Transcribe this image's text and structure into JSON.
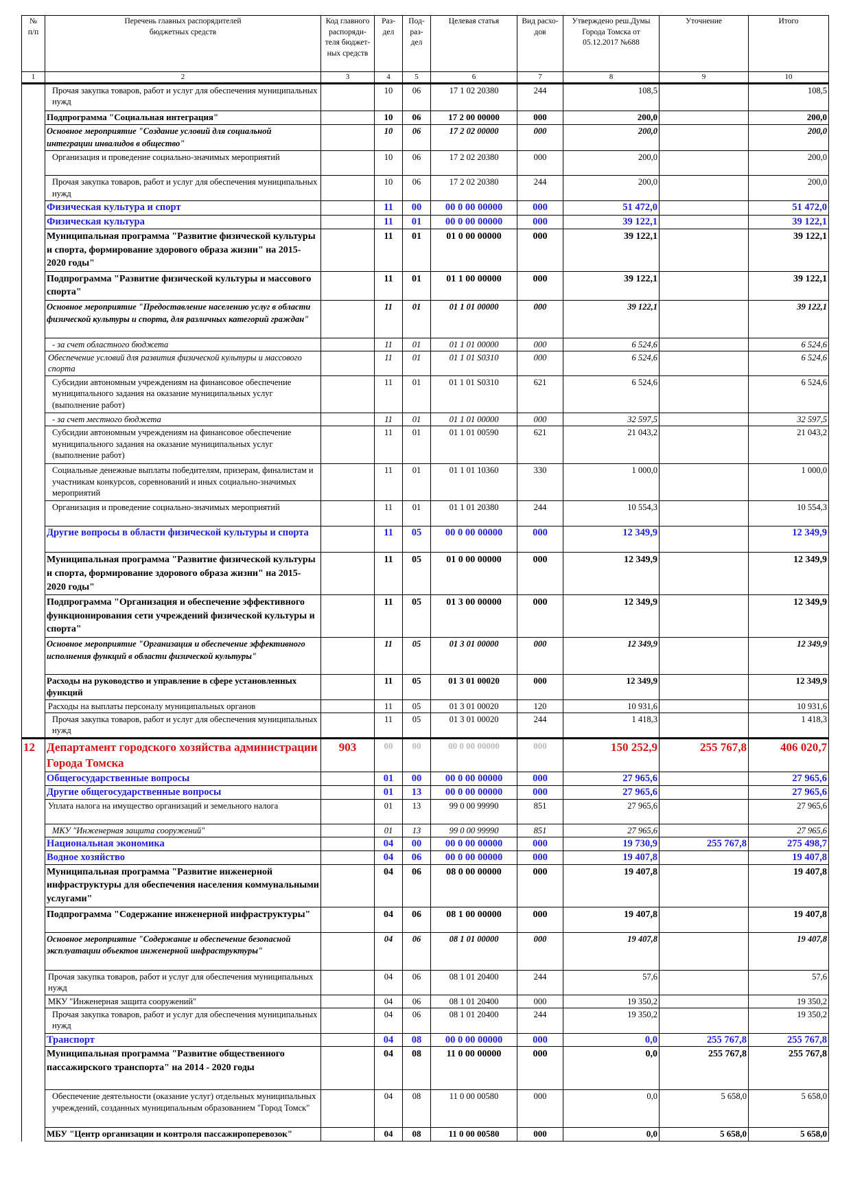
{
  "header": {
    "c1": "№\nп/п",
    "c2": "Перечень главных распорядителей\nбюджетных средств",
    "c3": "Код главного\nраспоряди-\nтеля бюджет-\nных средств",
    "c4": "Раз-\nдел",
    "c5": "Под-\nраз-\nдел",
    "c6": "Целевая статья",
    "c7": "Вид расхо-\nдов",
    "c8": "Утверждено реш.Думы\nГорода Томска от\n05.12.2017 №688",
    "c9": "Уточнение",
    "c10": "Итого"
  },
  "column_numbers": [
    "1",
    "2",
    "3",
    "4",
    "5",
    "6",
    "7",
    "8",
    "9",
    "10"
  ],
  "dept_number": "12",
  "dept_code": "903",
  "rows": [
    {
      "s": "ind",
      "h": 40,
      "name": "Прочая закупка товаров, работ и услуг для обеспечения муниципальных нужд",
      "razdel": "10",
      "podrazdel": "06",
      "statya": "17 1 02 20380",
      "vid": "244",
      "approved": "108,5",
      "change": "",
      "total": "108,5"
    },
    {
      "s": "progs",
      "h": 20,
      "name": "Подпрограмма \"Социальная интеграция\"",
      "razdel": "10",
      "podrazdel": "06",
      "statya": "17 2 00 00000",
      "vid": "000",
      "approved": "200,0",
      "change": "",
      "total": "200,0"
    },
    {
      "s": "main",
      "h": 35,
      "name": "Основное мероприятие \"Создание условий для социальной интеграции инвалидов в общество\"",
      "razdel": "10",
      "podrazdel": "06",
      "statya": "17 2 02 00000",
      "vid": "000",
      "approved": "200,0",
      "change": "",
      "total": "200,0"
    },
    {
      "s": "ind",
      "h": 36,
      "name": "Организация и проведение социально-значимых мероприятий",
      "razdel": "10",
      "podrazdel": "06",
      "statya": "17 2 02 20380",
      "vid": "000",
      "approved": "200,0",
      "change": "",
      "total": "200,0"
    },
    {
      "s": "ind",
      "h": 37,
      "name": "Прочая закупка товаров, работ и услуг для обеспечения муниципальных нужд",
      "razdel": "10",
      "podrazdel": "06",
      "statya": "17 2 02 20380",
      "vid": "244",
      "approved": "200,0",
      "change": "",
      "total": "200,0"
    },
    {
      "s": "sec",
      "h": 21,
      "name": "Физическая культура и спорт",
      "razdel": "11",
      "podrazdel": "00",
      "statya": "00 0 00 00000",
      "vid": "000",
      "approved": "51 472,0",
      "change": "",
      "total": "51 472,0"
    },
    {
      "s": "sec",
      "h": 19,
      "name": "Физическая культура",
      "razdel": "11",
      "podrazdel": "01",
      "statya": "00 0 00 00000",
      "vid": "000",
      "approved": "39 122,1",
      "change": "",
      "total": "39 122,1"
    },
    {
      "s": "prog",
      "h": 57,
      "name": "Муниципальная программа \"Развитие физической культуры и спорта, формирование здорового образа жизни\" на 2015-2020 годы\"",
      "razdel": "11",
      "podrazdel": "01",
      "statya": "01 0 00 00000",
      "vid": "000",
      "approved": "39 122,1",
      "change": "",
      "total": "39 122,1"
    },
    {
      "s": "prog",
      "h": 37,
      "name": "Подпрограмма \"Развитие физической культуры и массового спорта\"",
      "razdel": "11",
      "podrazdel": "01",
      "statya": "01 1 00 00000",
      "vid": "000",
      "approved": "39 122,1",
      "change": "",
      "total": "39 122,1"
    },
    {
      "s": "main",
      "h": 55,
      "name": "Основное мероприятие \"Предоставление населению услуг в области физической культуры и спорта, для различных категорий граждан\"",
      "razdel": "11",
      "podrazdel": "01",
      "statya": "01 1 01 00000",
      "vid": "000",
      "approved": "39 122,1",
      "change": "",
      "total": "39 122,1"
    },
    {
      "s": "ital ind",
      "h": 18,
      "name": "- за счет областного бюджета",
      "razdel": "11",
      "podrazdel": "01",
      "statya": "01 1 01 00000",
      "vid": "000",
      "approved": "6 524,6",
      "change": "",
      "total": "6 524,6"
    },
    {
      "s": "ital norm",
      "h": 36,
      "name": "Обеспечение условий для развития физической культуры и массового спорта",
      "razdel": "11",
      "podrazdel": "01",
      "statya": "01 1 01 S0310",
      "vid": "000",
      "approved": "6 524,6",
      "change": "",
      "total": "6 524,6"
    },
    {
      "s": "ind",
      "h": 54,
      "name": "Субсидии автономным учреждениям на финансовое обеспечение муниципального задания на оказание муниципальных услуг (выполнение работ)",
      "razdel": "11",
      "podrazdel": "01",
      "statya": "01 1 01 S0310",
      "vid": "621",
      "approved": "6 524,6",
      "change": "",
      "total": "6 524,6"
    },
    {
      "s": "ital ind",
      "h": 18,
      "name": "- за счет местного бюджета",
      "razdel": "11",
      "podrazdel": "01",
      "statya": "01 1 01 00000",
      "vid": "000",
      "approved": "32 597,5",
      "change": "",
      "total": "32 597,5"
    },
    {
      "s": "ind",
      "h": 55,
      "name": "Субсидии автономным учреждениям на финансовое обеспечение муниципального задания на оказание муниципальных услуг (выполнение работ)",
      "razdel": "11",
      "podrazdel": "01",
      "statya": "01 1 01 00590",
      "vid": "621",
      "approved": "21 043,2",
      "change": "",
      "total": "21 043,2"
    },
    {
      "s": "ind",
      "h": 54,
      "name": "Социальные денежные выплаты победителям, призерам, финалистам и участникам конкурсов, соревнований и иных социально-значимых мероприятий",
      "razdel": "11",
      "podrazdel": "01",
      "statya": "01 1 01 10360",
      "vid": "330",
      "approved": "1 000,0",
      "change": "",
      "total": "1 000,0"
    },
    {
      "s": "ind",
      "h": 37,
      "name": "Организация и проведение социально-значимых мероприятий",
      "razdel": "11",
      "podrazdel": "01",
      "statya": "01 1 01 20380",
      "vid": "244",
      "approved": "10 554,3",
      "change": "",
      "total": "10 554,3"
    },
    {
      "s": "sec",
      "h": 38,
      "name": "Другие вопросы в области физической культуры и спорта",
      "razdel": "11",
      "podrazdel": "05",
      "statya": "00 0 00 00000",
      "vid": "000",
      "approved": "12 349,9",
      "change": "",
      "total": "12 349,9"
    },
    {
      "s": "prog",
      "h": 57,
      "name": "Муниципальная программа \"Развитие физической культуры и спорта, формирование здорового образа жизни\" на 2015-2020 годы\"",
      "razdel": "11",
      "podrazdel": "05",
      "statya": "01 0 00 00000",
      "vid": "000",
      "approved": "12 349,9",
      "change": "",
      "total": "12 349,9"
    },
    {
      "s": "prog",
      "h": 57,
      "name": "Подпрограмма \"Организация и обеспечение эффективного функционирования сети учреждений физической культуры и спорта\"",
      "razdel": "11",
      "podrazdel": "05",
      "statya": "01 3 00 00000",
      "vid": "000",
      "approved": "12 349,9",
      "change": "",
      "total": "12 349,9"
    },
    {
      "s": "main",
      "h": 54,
      "name": "Основное мероприятие \"Организация и обеспечение эффективного исполнения функций в области физической культуры\"",
      "razdel": "11",
      "podrazdel": "05",
      "statya": "01 3 01 00000",
      "vid": "000",
      "approved": "12 349,9",
      "change": "",
      "total": "12 349,9"
    },
    {
      "s": "progs",
      "h": 36,
      "name": "Расходы на руководство и управление в сфере установленных функций",
      "razdel": "11",
      "podrazdel": "05",
      "statya": "01 3 01 00020",
      "vid": "000",
      "approved": "12 349,9",
      "change": "",
      "total": "12 349,9"
    },
    {
      "s": "norm",
      "h": 18,
      "name": "Расходы на выплаты персоналу муниципальных органов",
      "razdel": "11",
      "podrazdel": "05",
      "statya": "01 3 01 00020",
      "vid": "120",
      "approved": "10 931,6",
      "change": "",
      "total": "10 931,6"
    },
    {
      "s": "ind",
      "h": 36,
      "name": "Прочая закупка товаров, работ и услуг для обеспечения муниципальных нужд",
      "razdel": "11",
      "podrazdel": "05",
      "statya": "01 3 01 00020",
      "vid": "244",
      "approved": "1 418,3",
      "change": "",
      "total": "1 418,3"
    },
    {
      "s": "dept",
      "h": 48,
      "name": "Департамент городского хозяйства администрации Города Томска",
      "razdel": "00",
      "podrazdel": "00",
      "statya": "00 0 00 00000",
      "vid": "000",
      "approved": "150 252,9",
      "change": "255 767,8",
      "total": "406 020,7"
    },
    {
      "s": "sec",
      "h": 19,
      "name": "Общегосударственные вопросы",
      "razdel": "01",
      "podrazdel": "00",
      "statya": "00 0 00 00000",
      "vid": "000",
      "approved": "27 965,6",
      "change": "",
      "total": "27 965,6"
    },
    {
      "s": "sec",
      "h": 19,
      "name": "Другие общегосударственные вопросы",
      "razdel": "01",
      "podrazdel": "13",
      "statya": "00 0 00 00000",
      "vid": "000",
      "approved": "27 965,6",
      "change": "",
      "total": "27 965,6"
    },
    {
      "s": "norm",
      "h": 36,
      "name": "Уплата налога на имущество организаций и земельного налога",
      "razdel": "01",
      "podrazdel": "13",
      "statya": "99 0 00 99990",
      "vid": "851",
      "approved": "27 965,6",
      "change": "",
      "total": "27 965,6"
    },
    {
      "s": "ital ind",
      "h": 19,
      "name": "МКУ \"Инженерная защита сооружений\"",
      "razdel": "01",
      "podrazdel": "13",
      "statya": "99 0 00 99990",
      "vid": "851",
      "approved": "27 965,6",
      "change": "",
      "total": "27 965,6"
    },
    {
      "s": "sec",
      "h": 20,
      "name": "Национальная экономика",
      "razdel": "04",
      "podrazdel": "00",
      "statya": "00 0 00 00000",
      "vid": "000",
      "approved": "19 730,9",
      "change": "255 767,8",
      "total": "275 498,7"
    },
    {
      "s": "sec",
      "h": 18,
      "name": "Водное хозяйство",
      "razdel": "04",
      "podrazdel": "06",
      "statya": "00 0 00 00000",
      "vid": "000",
      "approved": "19 407,8",
      "change": "",
      "total": "19 407,8"
    },
    {
      "s": "prog",
      "h": 57,
      "name": "Муниципальная программа \"Развитие инженерной инфраструктуры для обеспечения населения коммунальными услугами\"",
      "razdel": "04",
      "podrazdel": "06",
      "statya": "08 0 00 00000",
      "vid": "000",
      "approved": "19 407,8",
      "change": "",
      "total": "19 407,8"
    },
    {
      "s": "prog",
      "h": 37,
      "name": "Подпрограмма \"Содержание инженерной инфраструктуры\"",
      "razdel": "04",
      "podrazdel": "06",
      "statya": "08 1 00 00000",
      "vid": "000",
      "approved": "19 407,8",
      "change": "",
      "total": "19 407,8"
    },
    {
      "s": "main",
      "h": 55,
      "name": "Основное мероприятие \"Содержание и обеспечение безопасной эксплуатации объектов инженерной инфраструктуры\"",
      "razdel": "04",
      "podrazdel": "06",
      "statya": "08 1 01 00000",
      "vid": "000",
      "approved": "19 407,8",
      "change": "",
      "total": "19 407,8"
    },
    {
      "s": "norm",
      "h": 36,
      "name": "Прочая закупка товаров, работ и услуг для обеспечения муниципальных нужд",
      "razdel": "04",
      "podrazdel": "06",
      "statya": "08 1 01 20400",
      "vid": "244",
      "approved": "57,6",
      "change": "",
      "total": "57,6"
    },
    {
      "s": "norm",
      "h": 18,
      "name": "МКУ \"Инженерная защита сооружений\"",
      "razdel": "04",
      "podrazdel": "06",
      "statya": "08 1 01 20400",
      "vid": "000",
      "approved": "19 350,2",
      "change": "",
      "total": "19 350,2"
    },
    {
      "s": "ind",
      "h": 37,
      "name": "Прочая закупка товаров, работ и услуг для обеспечения муниципальных нужд",
      "razdel": "04",
      "podrazdel": "06",
      "statya": "08 1 01 20400",
      "vid": "244",
      "approved": "19 350,2",
      "change": "",
      "total": "19 350,2"
    },
    {
      "s": "sec",
      "h": 19,
      "name": "Транспорт",
      "razdel": "04",
      "podrazdel": "08",
      "statya": "00 0 00 00000",
      "vid": "000",
      "approved": "0,0",
      "change": "255 767,8",
      "total": "255 767,8"
    },
    {
      "s": "prog",
      "h": 63,
      "name": "Муниципальная программа \"Развитие общественного пассажирского транспорта\" на 2014 - 2020 годы",
      "razdel": "04",
      "podrazdel": "08",
      "statya": "11 0 00 00000",
      "vid": "000",
      "approved": "0,0",
      "change": "255 767,8",
      "total": "255 767,8"
    },
    {
      "s": "ind",
      "h": 55,
      "name": "Обеспечение деятельности (оказание услуг) отдельных муниципальных учреждений, созданных муниципальным образованием \"Город Томск\"",
      "razdel": "04",
      "podrazdel": "08",
      "statya": "11 0 00 00580",
      "vid": "000",
      "approved": "0,0",
      "change": "5 658,0",
      "total": "5 658,0"
    },
    {
      "s": "progs",
      "h": 20,
      "name": "МБУ \"Центр организации и контроля пассажироперевозок\"",
      "razdel": "04",
      "podrazdel": "08",
      "statya": "11 0 00 00580",
      "vid": "000",
      "approved": "0,0",
      "change": "5 658,0",
      "total": "5 658,0"
    }
  ]
}
